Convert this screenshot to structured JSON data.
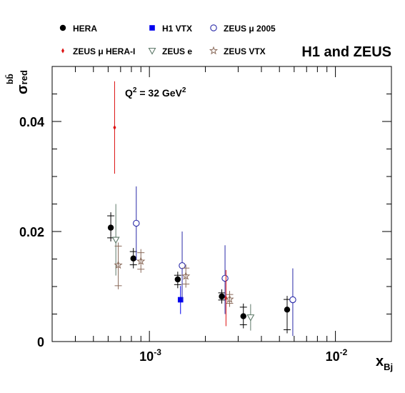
{
  "chart_data": {
    "type": "scatter",
    "title": "H1 and ZEUS",
    "annotation": {
      "base": "Q",
      "sup1": "2",
      "middle": " = 32 GeV",
      "sup2": "2"
    },
    "xlabel": {
      "base": "x",
      "sub": "Bj"
    },
    "ylabel": {
      "base": "σ",
      "sup": "bb̄",
      "sub": "red"
    },
    "x_scale": "log",
    "xlim": [
      0.0003,
      0.02
    ],
    "ylim": [
      0,
      0.05
    ],
    "grid": false,
    "legend_position": "top",
    "y_ticks": [
      {
        "value": 0,
        "label": "0"
      },
      {
        "value": 0.02,
        "label": "0.02"
      },
      {
        "value": 0.04,
        "label": "0.04"
      }
    ],
    "x_ticks": [
      {
        "value": 0.001,
        "base": "10",
        "exp": "-3"
      },
      {
        "value": 0.01,
        "base": "10",
        "exp": "-2"
      }
    ],
    "series": [
      {
        "name": "HERA",
        "marker": "circle-filled",
        "color": "#000000",
        "errstyle": "cross",
        "points": [
          {
            "x": 0.00062,
            "y": 0.0207,
            "ylo": 0.0182,
            "yhi": 0.0235
          },
          {
            "x": 0.00082,
            "y": 0.0151,
            "ylo": 0.0133,
            "yhi": 0.017
          },
          {
            "x": 0.00142,
            "y": 0.0113,
            "ylo": 0.0097,
            "yhi": 0.0127
          },
          {
            "x": 0.00245,
            "y": 0.0082,
            "ylo": 0.0069,
            "yhi": 0.0095
          },
          {
            "x": 0.0032,
            "y": 0.0046,
            "ylo": 0.0024,
            "yhi": 0.0069
          },
          {
            "x": 0.0055,
            "y": 0.0058,
            "ylo": 0.0015,
            "yhi": 0.0083
          }
        ]
      },
      {
        "name": "H1 VTX",
        "marker": "square-filled",
        "color": "#0000ee",
        "errstyle": "line",
        "points": [
          {
            "x": 0.00147,
            "y": 0.0076,
            "ylo": 0.005,
            "yhi": 0.0101
          }
        ]
      },
      {
        "name": "ZEUS μ 2005",
        "marker": "circle-open",
        "color": "#2a2aa8",
        "errstyle": "line",
        "points": [
          {
            "x": 0.00085,
            "y": 0.0215,
            "ylo": 0.0148,
            "yhi": 0.0282
          },
          {
            "x": 0.0015,
            "y": 0.0138,
            "ylo": 0.0075,
            "yhi": 0.02
          },
          {
            "x": 0.00255,
            "y": 0.0115,
            "ylo": 0.005,
            "yhi": 0.0175
          },
          {
            "x": 0.0059,
            "y": 0.0076,
            "ylo": 0.001,
            "yhi": 0.0133
          }
        ]
      },
      {
        "name": "ZEUS μ HERA-I",
        "marker": "diamond-filled",
        "color": "#dd1111",
        "errstyle": "line",
        "points": [
          {
            "x": 0.00065,
            "y": 0.0389,
            "ylo": 0.0305,
            "yhi": 0.0473
          },
          {
            "x": 0.00258,
            "y": 0.0079,
            "ylo": 0.0028,
            "yhi": 0.013
          }
        ]
      },
      {
        "name": "ZEUS e",
        "marker": "triangle-down-open",
        "color": "#5f7a6a",
        "errstyle": "line",
        "points": [
          {
            "x": 0.00066,
            "y": 0.0185,
            "ylo": 0.012,
            "yhi": 0.025
          },
          {
            "x": 0.0035,
            "y": 0.0044,
            "ylo": 0.002,
            "yhi": 0.0068
          }
        ]
      },
      {
        "name": "ZEUS VTX",
        "marker": "star-open",
        "color": "#8a6a5a",
        "errstyle": "cross",
        "points": [
          {
            "x": 0.00068,
            "y": 0.0139,
            "ylo": 0.0095,
            "yhi": 0.018
          },
          {
            "x": 0.0009,
            "y": 0.0146,
            "ylo": 0.0125,
            "yhi": 0.0168
          },
          {
            "x": 0.00157,
            "y": 0.0119,
            "ylo": 0.0098,
            "yhi": 0.014
          },
          {
            "x": 0.0027,
            "y": 0.0077,
            "ylo": 0.0063,
            "yhi": 0.0092
          }
        ]
      }
    ]
  }
}
